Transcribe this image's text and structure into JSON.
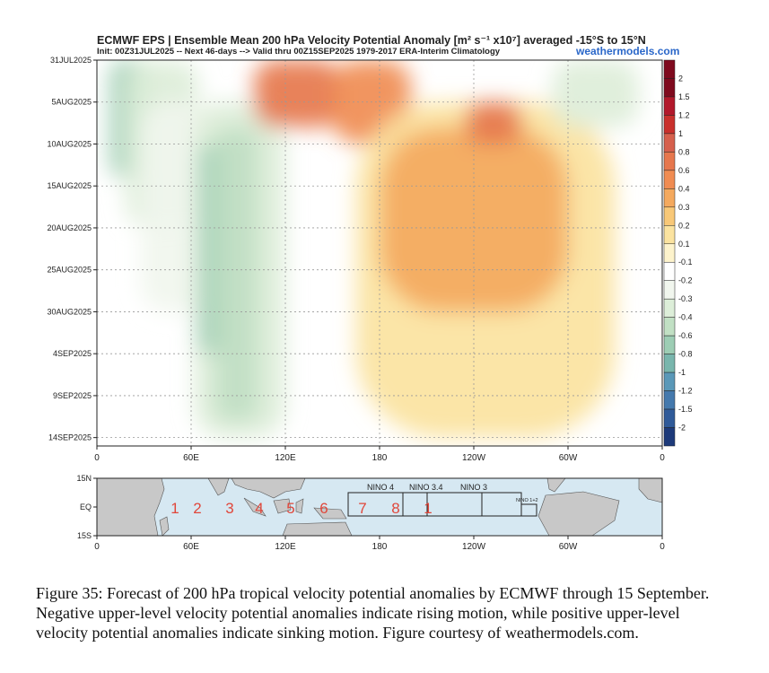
{
  "header": {
    "title": "ECMWF EPS | Ensemble Mean 200 hPa Velocity Potential Anomaly [m² s⁻¹ x10⁷] averaged -15°S to 15°N",
    "subtitle": "Init: 00Z31JUL2025 -- Next 46-days --> Valid thru 00Z15SEP2025 1979-2017 ERA-Interim Climatology",
    "brand": "weathermodels.com"
  },
  "chart_data": [
    {
      "type": "heatmap",
      "title": "ECMWF EPS | Ensemble Mean 200 hPa Velocity Potential Anomaly [m² s⁻¹ x10⁷] averaged -15°S to 15°N",
      "x_ticks": [
        "0",
        "60E",
        "120E",
        "180",
        "120W",
        "60W",
        "0"
      ],
      "x_values": [
        0,
        60,
        120,
        180,
        240,
        300,
        360
      ],
      "y_ticks": [
        "31JUL2025",
        "5AUG2025",
        "10AUG2025",
        "15AUG2025",
        "20AUG2025",
        "25AUG2025",
        "30AUG2025",
        "4SEP2025",
        "9SEP2025",
        "14SEP2025"
      ],
      "y_day_offsets": [
        0,
        5,
        10,
        15,
        20,
        25,
        30,
        35,
        40,
        45
      ],
      "grid": true,
      "colorbar": {
        "labels": [
          "2",
          "1.5",
          "1.2",
          "1",
          "0.8",
          "0.6",
          "0.4",
          "0.3",
          "0.2",
          "0.1",
          "-0.1",
          "-0.2",
          "-0.3",
          "-0.4",
          "-0.6",
          "-0.8",
          "-1",
          "-1.2",
          "-1.5",
          "-2"
        ],
        "colors": [
          "#7f0a1e",
          "#b2182b",
          "#c9302c",
          "#d6604d",
          "#e6774d",
          "#f08c52",
          "#f4a95e",
          "#f8c878",
          "#fbe3a0",
          "#fdf3cc",
          "#ffffff",
          "#f1f6ee",
          "#ddeed9",
          "#c1e0c4",
          "#9dcdb4",
          "#79b6ad",
          "#5a98b8",
          "#4479ad",
          "#2f5a99",
          "#1d3a7a"
        ]
      },
      "regions": [
        {
          "x": [
            8,
            35
          ],
          "days": [
            0,
            14
          ],
          "value": -0.6
        },
        {
          "x": [
            18,
            65
          ],
          "days": [
            0,
            20
          ],
          "value": -0.3
        },
        {
          "x": [
            28,
            80
          ],
          "days": [
            5,
            30
          ],
          "value": -0.2
        },
        {
          "x": [
            62,
            120
          ],
          "days": [
            5,
            45
          ],
          "value": -0.3
        },
        {
          "x": [
            65,
            88
          ],
          "days": [
            10,
            35
          ],
          "value": -0.6
        },
        {
          "x": [
            75,
            103
          ],
          "days": [
            8,
            43
          ],
          "value": -0.4
        },
        {
          "x": [
            100,
            155
          ],
          "days": [
            0,
            8
          ],
          "value": 0.8
        },
        {
          "x": [
            150,
            200
          ],
          "days": [
            0,
            10
          ],
          "value": 0.6
        },
        {
          "x": [
            165,
            330
          ],
          "days": [
            5,
            45
          ],
          "value": 0.2
        },
        {
          "x": [
            180,
            300
          ],
          "days": [
            8,
            30
          ],
          "value": 0.4
        },
        {
          "x": [
            235,
            270
          ],
          "days": [
            5,
            10
          ],
          "value": 0.8
        },
        {
          "x": [
            290,
            345
          ],
          "days": [
            0,
            8
          ],
          "value": -0.3
        }
      ]
    },
    {
      "type": "map",
      "lat_ticks": [
        "15N",
        "EQ",
        "15S"
      ],
      "x_ticks": [
        "0",
        "60E",
        "120E",
        "180",
        "120W",
        "60W",
        "0"
      ],
      "region_numbers": [
        "1",
        "2",
        "3",
        "4",
        "5",
        "6",
        "7",
        "8",
        "1"
      ],
      "nino_boxes": [
        "NINO 4",
        "NINO 3.4",
        "NINO 3",
        "NINO 1+2"
      ]
    }
  ],
  "caption": "Figure 35: Forecast of 200 hPa tropical velocity potential anomalies by ECMWF through 15 September. Negative upper-level velocity potential anomalies indicate rising motion, while positive upper-level velocity potential anomalies indicate sinking motion. Figure courtesy of weathermodels.com."
}
